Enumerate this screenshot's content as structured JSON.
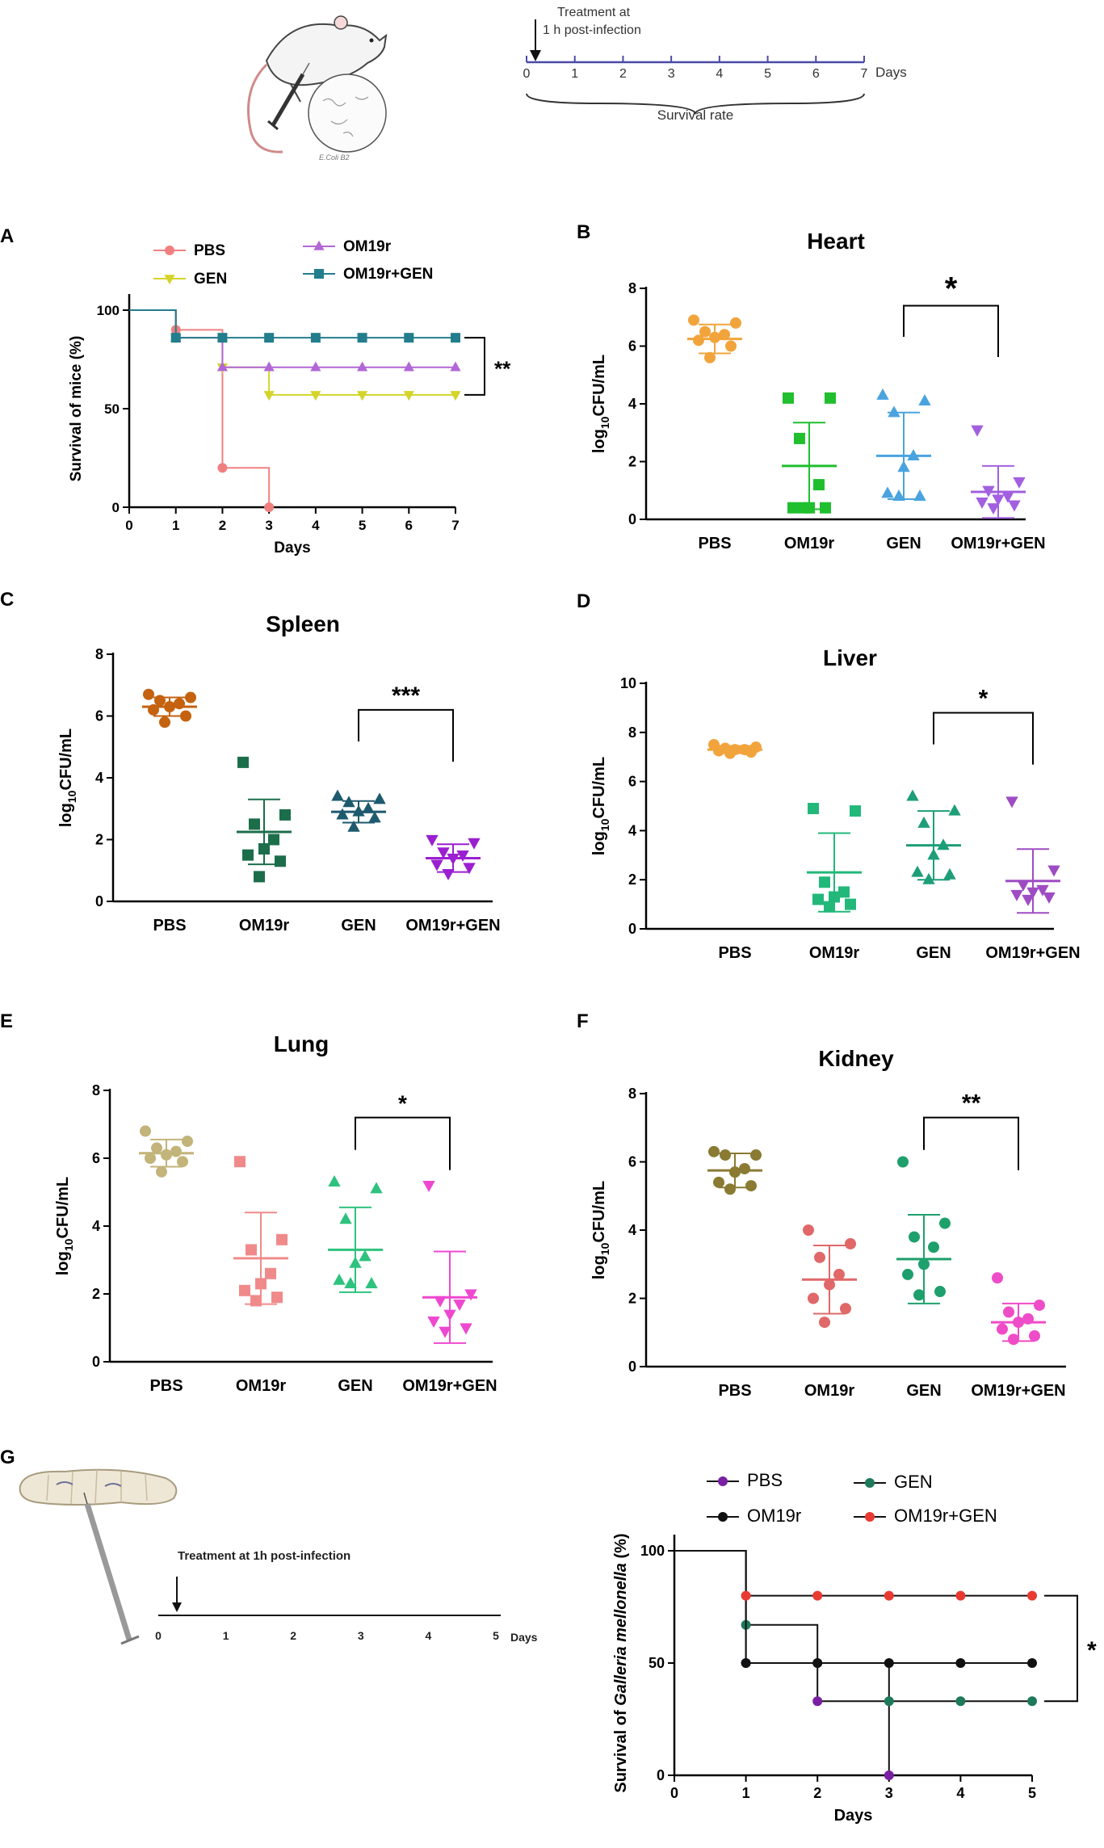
{
  "colors": {
    "pbs_survival": "#f08080",
    "gen": "#d4d42a",
    "om19r": "#b267d6",
    "combo": "#227d8c",
    "axis": "#000000",
    "timeline": "#4a4aa8"
  },
  "mouse_timeline": {
    "title_line1": "Treatment at",
    "title_line2": "1 h post-infection",
    "ticks": [
      "0",
      "1",
      "2",
      "3",
      "4",
      "5",
      "6",
      "7"
    ],
    "unit": "Days",
    "caption": "Survival rate",
    "illustration_label": "E.Coli B2"
  },
  "larva_timeline": {
    "title": "Treatment at 1h post-infection",
    "ticks": [
      "0",
      "1",
      "2",
      "3",
      "4",
      "5"
    ],
    "unit": "Days"
  },
  "chart_data": [
    {
      "id": "A",
      "panel_label": "A",
      "type": "line",
      "subtype": "step",
      "xlabel": "Days",
      "ylabel": "Survival of mice (%)",
      "xlim": [
        0,
        7
      ],
      "ylim": [
        0,
        100
      ],
      "xticks": [
        "0",
        "1",
        "2",
        "3",
        "4",
        "5",
        "6",
        "7"
      ],
      "yticks": [
        "0",
        "50",
        "100"
      ],
      "series": [
        {
          "name": "PBS",
          "color": "#f08080",
          "marker": "circle",
          "x": [
            0,
            1,
            2,
            3
          ],
          "y": [
            100,
            90,
            20,
            0
          ]
        },
        {
          "name": "GEN",
          "color": "#d4d42a",
          "marker": "tri-down",
          "x": [
            0,
            1,
            2,
            3,
            4,
            5,
            6,
            7
          ],
          "y": [
            100,
            86,
            71,
            57,
            57,
            57,
            57,
            57
          ]
        },
        {
          "name": "OM19r",
          "color": "#b267d6",
          "marker": "tri-up",
          "x": [
            0,
            1,
            2,
            3,
            4,
            5,
            6,
            7
          ],
          "y": [
            100,
            86,
            71,
            71,
            71,
            71,
            71,
            71
          ]
        },
        {
          "name": "OM19r+GEN",
          "color": "#227d8c",
          "marker": "square",
          "x": [
            0,
            1,
            2,
            3,
            4,
            5,
            6,
            7
          ],
          "y": [
            100,
            86,
            86,
            86,
            86,
            86,
            86,
            86
          ]
        }
      ],
      "significance": "**"
    },
    {
      "id": "B",
      "panel_label": "B",
      "type": "scatter",
      "title": "Heart",
      "ylabel": "log10CFU/mL",
      "ylim": [
        0,
        8
      ],
      "yticks": [
        "0",
        "2",
        "4",
        "6",
        "8"
      ],
      "categories": [
        "PBS",
        "OM19r",
        "GEN",
        "OM19r+GEN"
      ],
      "groups": [
        {
          "name": "PBS",
          "color": "#f2a43c",
          "marker": "circle",
          "mean": 6.25,
          "sd": 0.5,
          "values": [
            6.9,
            6.8,
            6.5,
            6.4,
            6.3,
            6.2,
            6.0,
            5.6
          ]
        },
        {
          "name": "OM19r",
          "color": "#1fbf2e",
          "marker": "square",
          "mean": 1.85,
          "sd": 1.5,
          "values": [
            4.2,
            4.2,
            2.8,
            1.2,
            0.4,
            0.4,
            0.4,
            0.4
          ]
        },
        {
          "name": "GEN",
          "color": "#4aa3df",
          "marker": "tri-up",
          "mean": 2.2,
          "sd": 1.5,
          "values": [
            4.3,
            4.1,
            3.7,
            2.2,
            1.8,
            0.9,
            0.8,
            0.8
          ]
        },
        {
          "name": "OM19r+GEN",
          "color": "#a260e0",
          "marker": "tri-down",
          "mean": 0.95,
          "sd": 0.9,
          "values": [
            3.1,
            1.3,
            1.0,
            0.8,
            0.7,
            0.6,
            0.5,
            0.4
          ]
        }
      ],
      "comparison": {
        "from": "GEN",
        "to": "OM19r+GEN",
        "y": 7.4,
        "label": "*"
      }
    },
    {
      "id": "C",
      "panel_label": "C",
      "type": "scatter",
      "title": "Spleen",
      "ylabel": "log10CFU/mL",
      "ylim": [
        0,
        8
      ],
      "yticks": [
        "0",
        "2",
        "4",
        "6",
        "8"
      ],
      "categories": [
        "PBS",
        "OM19r",
        "GEN",
        "OM19r+GEN"
      ],
      "groups": [
        {
          "name": "PBS",
          "color": "#c4620f",
          "marker": "circle",
          "mean": 6.3,
          "sd": 0.3,
          "values": [
            6.7,
            6.6,
            6.5,
            6.4,
            6.3,
            6.2,
            6.0,
            5.8
          ]
        },
        {
          "name": "OM19r",
          "color": "#1c6e4a",
          "marker": "square",
          "mean": 2.25,
          "sd": 1.05,
          "values": [
            4.5,
            2.8,
            2.5,
            2.0,
            1.7,
            1.5,
            1.3,
            0.8
          ]
        },
        {
          "name": "GEN",
          "color": "#1d5a6e",
          "marker": "tri-up",
          "mean": 2.9,
          "sd": 0.35,
          "values": [
            3.4,
            3.3,
            3.2,
            3.0,
            2.9,
            2.8,
            2.7,
            2.4
          ]
        },
        {
          "name": "OM19r+GEN",
          "color": "#9b1fd1",
          "marker": "tri-down",
          "mean": 1.4,
          "sd": 0.45,
          "values": [
            2.0,
            1.9,
            1.6,
            1.5,
            1.4,
            1.2,
            1.1,
            0.9
          ]
        }
      ],
      "comparison": {
        "from": "GEN",
        "to": "OM19r+GEN",
        "y": 6.2,
        "label": "***"
      }
    },
    {
      "id": "D",
      "panel_label": "D",
      "type": "scatter",
      "title": "Liver",
      "ylabel": "log10CFU/mL",
      "ylim": [
        0,
        10
      ],
      "yticks": [
        "0",
        "2",
        "4",
        "6",
        "8",
        "10"
      ],
      "categories": [
        "PBS",
        "OM19r",
        "GEN",
        "OM19r+GEN"
      ],
      "groups": [
        {
          "name": "PBS",
          "color": "#f2a43c",
          "marker": "circle",
          "mean": 7.3,
          "sd": 0.15,
          "values": [
            7.5,
            7.4,
            7.35,
            7.3,
            7.3,
            7.25,
            7.2,
            7.15
          ]
        },
        {
          "name": "OM19r",
          "color": "#22b87a",
          "marker": "square",
          "mean": 2.3,
          "sd": 1.6,
          "values": [
            4.9,
            4.8,
            1.9,
            1.5,
            1.3,
            1.2,
            1.0,
            0.9
          ]
        },
        {
          "name": "GEN",
          "color": "#1e9e78",
          "marker": "tri-up",
          "mean": 3.4,
          "sd": 1.4,
          "values": [
            5.4,
            4.8,
            4.3,
            3.4,
            3.0,
            2.3,
            2.2,
            2.0
          ]
        },
        {
          "name": "OM19r+GEN",
          "color": "#9e4cc4",
          "marker": "tri-down",
          "mean": 1.95,
          "sd": 1.3,
          "values": [
            5.2,
            2.4,
            1.8,
            1.6,
            1.5,
            1.4,
            1.3,
            1.2
          ]
        }
      ],
      "comparison": {
        "from": "GEN",
        "to": "OM19r+GEN",
        "y": 8.8,
        "label": "*"
      }
    },
    {
      "id": "E",
      "panel_label": "E",
      "type": "scatter",
      "title": "Lung",
      "ylabel": "log10CFU/mL",
      "ylim": [
        0,
        8
      ],
      "yticks": [
        "0",
        "2",
        "4",
        "6",
        "8"
      ],
      "categories": [
        "PBS",
        "OM19r",
        "GEN",
        "OM19r+GEN"
      ],
      "groups": [
        {
          "name": "PBS",
          "color": "#c2b47a",
          "marker": "circle",
          "mean": 6.15,
          "sd": 0.4,
          "values": [
            6.8,
            6.5,
            6.3,
            6.2,
            6.1,
            6.0,
            5.9,
            5.6
          ]
        },
        {
          "name": "OM19r",
          "color": "#f08a8a",
          "marker": "square",
          "mean": 3.05,
          "sd": 1.35,
          "values": [
            5.9,
            3.6,
            3.3,
            2.6,
            2.3,
            2.1,
            1.9,
            1.8
          ]
        },
        {
          "name": "GEN",
          "color": "#2ec27e",
          "marker": "tri-up",
          "mean": 3.3,
          "sd": 1.25,
          "values": [
            5.3,
            5.1,
            4.2,
            3.1,
            2.9,
            2.4,
            2.3,
            2.3
          ]
        },
        {
          "name": "OM19r+GEN",
          "color": "#ee48d0",
          "marker": "tri-down",
          "mean": 1.9,
          "sd": 1.35,
          "values": [
            5.2,
            2.0,
            1.8,
            1.7,
            1.4,
            1.2,
            1.0,
            0.9
          ]
        }
      ],
      "comparison": {
        "from": "GEN",
        "to": "OM19r+GEN",
        "y": 7.2,
        "label": "*"
      }
    },
    {
      "id": "F",
      "panel_label": "F",
      "type": "scatter",
      "title": "Kidney",
      "ylabel": "log10CFU/mL",
      "ylim": [
        0,
        8
      ],
      "yticks": [
        "0",
        "2",
        "4",
        "6",
        "8"
      ],
      "categories": [
        "PBS",
        "OM19r",
        "GEN",
        "OM19r+GEN"
      ],
      "groups": [
        {
          "name": "PBS",
          "color": "#8a7a32",
          "marker": "circle",
          "mean": 5.75,
          "sd": 0.5,
          "values": [
            6.3,
            6.2,
            6.2,
            5.8,
            5.7,
            5.4,
            5.3,
            5.2
          ]
        },
        {
          "name": "OM19r",
          "color": "#e06868",
          "marker": "circle",
          "mean": 2.55,
          "sd": 1.0,
          "values": [
            4.0,
            3.6,
            3.2,
            2.7,
            2.4,
            2.0,
            1.7,
            1.3
          ]
        },
        {
          "name": "GEN",
          "color": "#1ea06c",
          "marker": "circle",
          "mean": 3.15,
          "sd": 1.3,
          "values": [
            6.0,
            4.2,
            3.8,
            3.5,
            3.0,
            2.7,
            2.2,
            2.1
          ]
        },
        {
          "name": "OM19r+GEN",
          "color": "#ef4cc8",
          "marker": "circle",
          "mean": 1.3,
          "sd": 0.55,
          "values": [
            2.6,
            1.8,
            1.6,
            1.4,
            1.3,
            1.1,
            0.9,
            0.8
          ]
        }
      ],
      "comparison": {
        "from": "GEN",
        "to": "OM19r+GEN",
        "y": 7.3,
        "label": "**"
      }
    },
    {
      "id": "G",
      "panel_label": "G",
      "type": "line",
      "subtype": "step",
      "xlabel": "Days",
      "ylabel_prefix": "Survival of ",
      "ylabel_italic": "Galleria mellonella",
      "ylabel_suffix": " (%)",
      "xlim": [
        0,
        5
      ],
      "ylim": [
        0,
        100
      ],
      "xticks": [
        "0",
        "1",
        "2",
        "3",
        "4",
        "5"
      ],
      "yticks": [
        "0",
        "50",
        "100"
      ],
      "series": [
        {
          "name": "PBS",
          "color": "#7a1fa2",
          "marker": "circle",
          "x": [
            0,
            1,
            2,
            3
          ],
          "y": [
            100,
            50,
            33,
            0
          ]
        },
        {
          "name": "GEN",
          "color": "#1e7a5a",
          "marker": "circle",
          "x": [
            0,
            1,
            2,
            3,
            4,
            5
          ],
          "y": [
            100,
            67,
            50,
            33,
            33,
            33
          ]
        },
        {
          "name": "OM19r",
          "color": "#111111",
          "marker": "circle",
          "x": [
            0,
            1,
            2,
            3,
            4,
            5
          ],
          "y": [
            100,
            50,
            50,
            50,
            50,
            50
          ]
        },
        {
          "name": "OM19r+GEN",
          "color": "#e83a30",
          "marker": "circle",
          "x": [
            0,
            1,
            2,
            3,
            4,
            5
          ],
          "y": [
            100,
            80,
            80,
            80,
            80,
            80
          ]
        }
      ],
      "significance": "*"
    }
  ]
}
